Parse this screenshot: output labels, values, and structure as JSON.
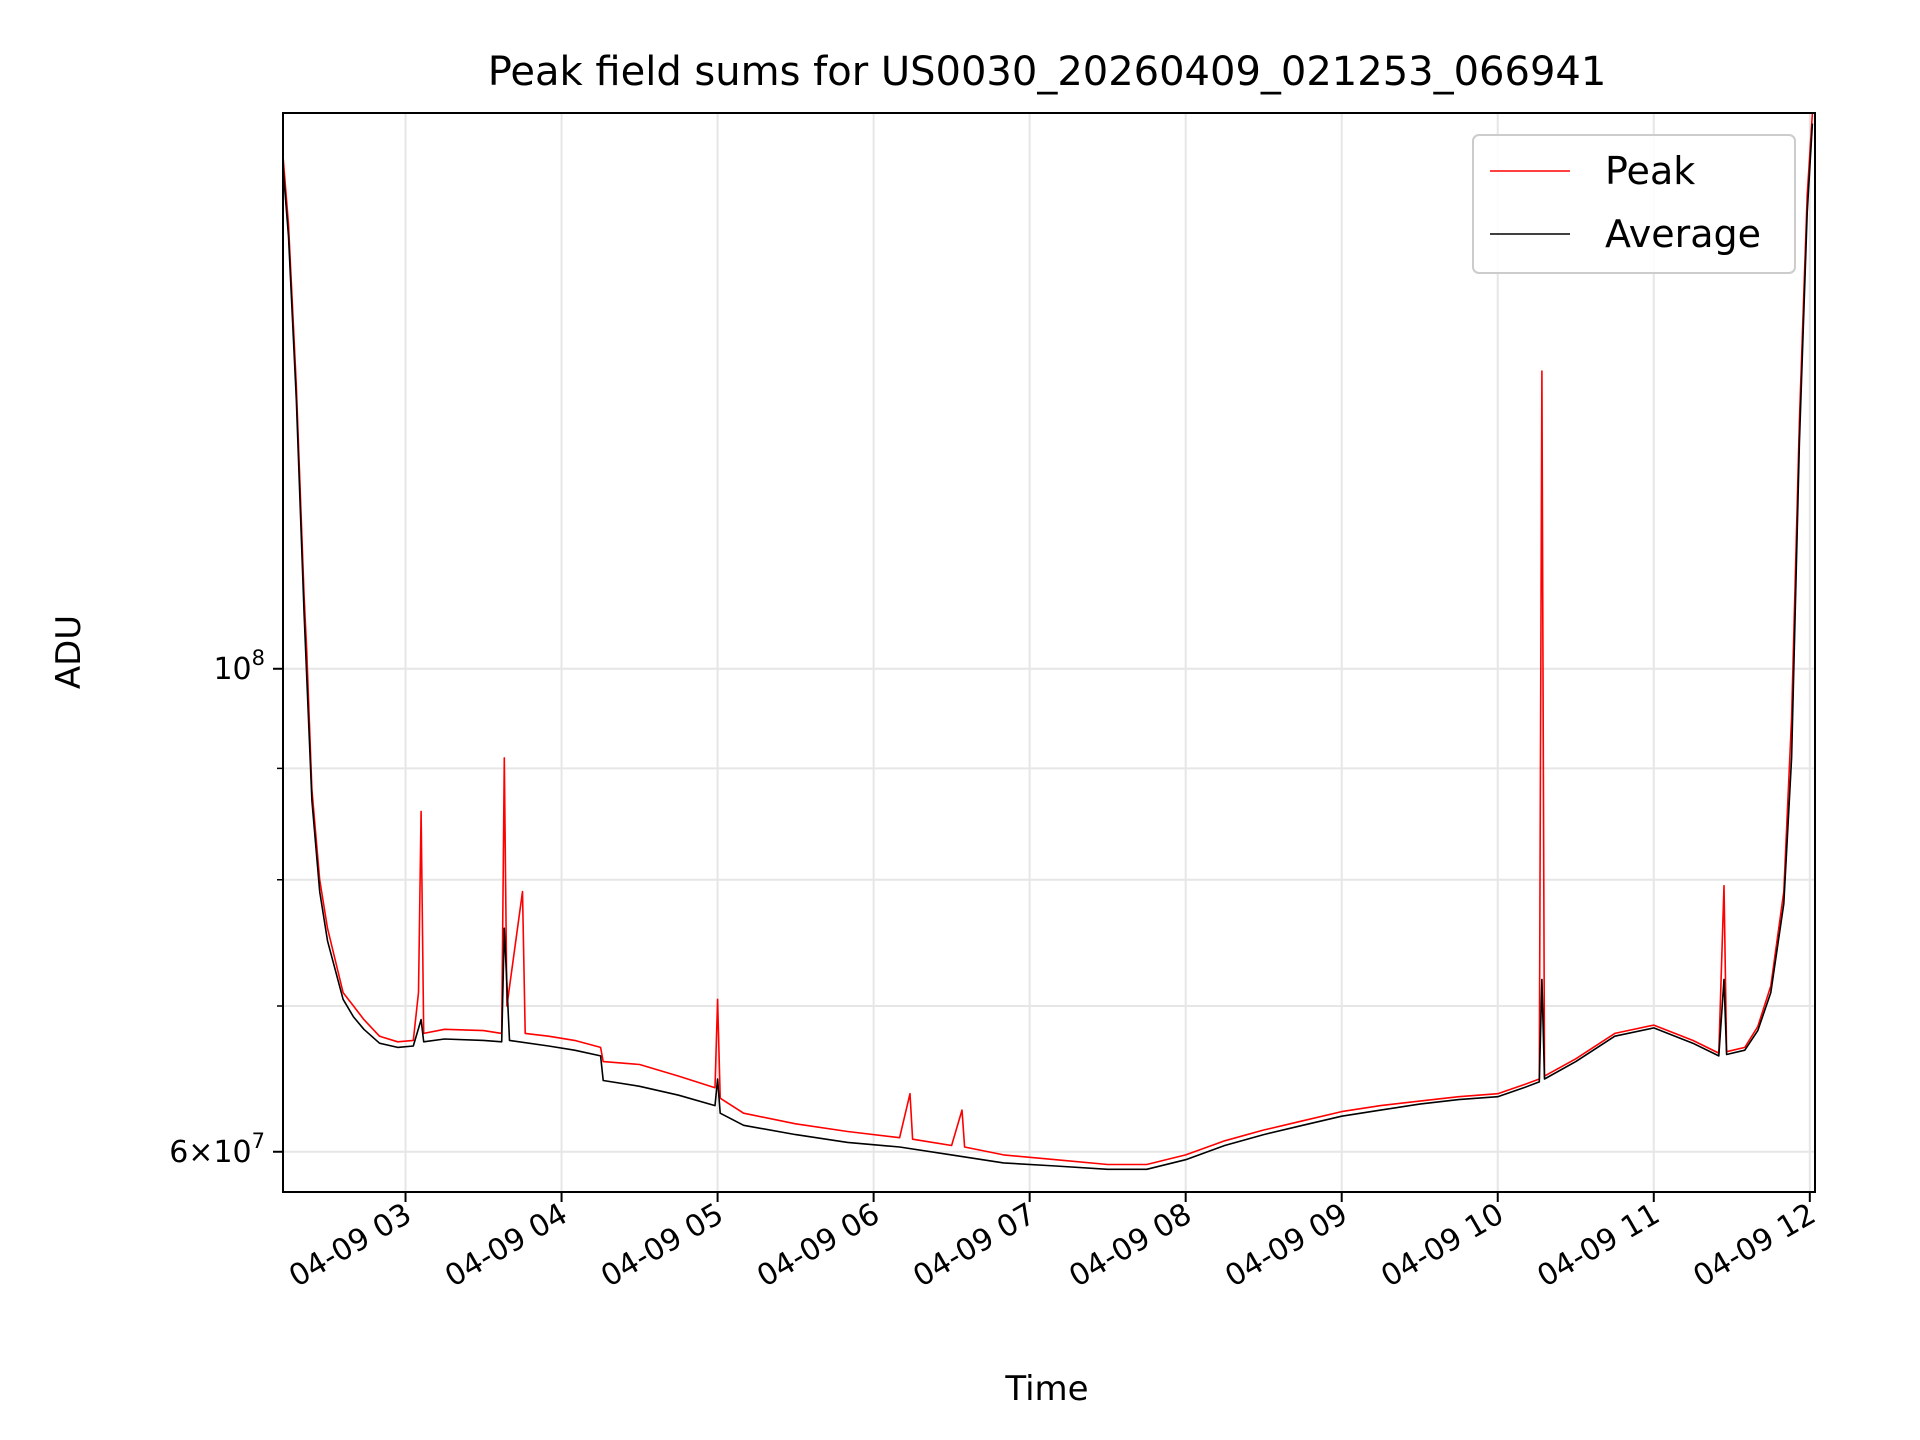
{
  "chart_data": {
    "type": "line",
    "title": "Peak field sums for US0030_20260409_021253_066941",
    "xlabel": "Time",
    "ylabel": "ADU",
    "yscale": "log",
    "xlim": [
      "04-09 02:12:53",
      "04-09 12:02"
    ],
    "ylim": [
      57500000,
      180000000
    ],
    "x_ticks": [
      "04-09 03",
      "04-09 04",
      "04-09 05",
      "04-09 06",
      "04-09 07",
      "04-09 08",
      "04-09 09",
      "04-09 10",
      "04-09 11",
      "04-09 12"
    ],
    "y_ticks": [
      {
        "value": 100000000,
        "base": "10",
        "exp": "8",
        "prefix": ""
      },
      {
        "value": 60000000,
        "base": "10",
        "exp": "7",
        "prefix": "6×"
      }
    ],
    "grid": true,
    "legend": {
      "position": "top-right",
      "entries": [
        "Peak",
        "Average"
      ]
    },
    "colors": {
      "Peak": "#ff0000",
      "Average": "#000000"
    },
    "series": [
      {
        "name": "Peak",
        "points": [
          [
            "02:12:53",
            172000000
          ],
          [
            "02:15",
            160000000
          ],
          [
            "02:18",
            135000000
          ],
          [
            "02:21",
            108000000
          ],
          [
            "02:22",
            102000000
          ],
          [
            "02:24",
            88000000
          ],
          [
            "02:27",
            80000000
          ],
          [
            "02:30",
            76000000
          ],
          [
            "02:36",
            71000000
          ],
          [
            "02:40",
            70000000
          ],
          [
            "02:44",
            69000000
          ],
          [
            "02:50",
            67800000
          ],
          [
            "02:57",
            67400000
          ],
          [
            "03:03",
            67500000
          ],
          [
            "03:05",
            71000000
          ],
          [
            "03:06",
            86000000
          ],
          [
            "03:07",
            68000000
          ],
          [
            "03:15",
            68300000
          ],
          [
            "03:30",
            68200000
          ],
          [
            "03:37",
            68000000
          ],
          [
            "03:38",
            91000000
          ],
          [
            "03:39",
            70000000
          ],
          [
            "03:45",
            79000000
          ],
          [
            "03:46",
            68000000
          ],
          [
            "03:55",
            67800000
          ],
          [
            "04:05",
            67500000
          ],
          [
            "04:15",
            67000000
          ],
          [
            "04:16",
            66000000
          ],
          [
            "04:30",
            65800000
          ],
          [
            "04:45",
            65000000
          ],
          [
            "04:59",
            64200000
          ],
          [
            "05:00",
            70500000
          ],
          [
            "05:01",
            63500000
          ],
          [
            "05:10",
            62500000
          ],
          [
            "05:30",
            61800000
          ],
          [
            "05:50",
            61300000
          ],
          [
            "06:10",
            60900000
          ],
          [
            "06:14",
            63800000
          ],
          [
            "06:15",
            60800000
          ],
          [
            "06:30",
            60400000
          ],
          [
            "06:34",
            62700000
          ],
          [
            "06:35",
            60300000
          ],
          [
            "06:50",
            59800000
          ],
          [
            "07:10",
            59500000
          ],
          [
            "07:30",
            59200000
          ],
          [
            "07:45",
            59200000
          ],
          [
            "08:00",
            59800000
          ],
          [
            "08:15",
            60700000
          ],
          [
            "08:30",
            61400000
          ],
          [
            "08:45",
            62000000
          ],
          [
            "09:00",
            62600000
          ],
          [
            "09:15",
            63000000
          ],
          [
            "09:30",
            63300000
          ],
          [
            "09:45",
            63600000
          ],
          [
            "10:00",
            63800000
          ],
          [
            "10:10",
            64400000
          ],
          [
            "10:16",
            64800000
          ],
          [
            "10:17",
            137000000
          ],
          [
            "10:18",
            65000000
          ],
          [
            "10:30",
            66200000
          ],
          [
            "10:45",
            68000000
          ],
          [
            "11:00",
            68600000
          ],
          [
            "11:15",
            67500000
          ],
          [
            "11:25",
            66600000
          ],
          [
            "11:27",
            79500000
          ],
          [
            "11:28",
            66700000
          ],
          [
            "11:35",
            67000000
          ],
          [
            "11:40",
            68500000
          ],
          [
            "11:45",
            71500000
          ],
          [
            "11:50",
            79000000
          ],
          [
            "11:53",
            95000000
          ],
          [
            "11:56",
            130000000
          ],
          [
            "11:59",
            165000000
          ],
          [
            "12:01",
            180000000
          ]
        ]
      },
      {
        "name": "Average",
        "points": [
          [
            "02:12:53",
            170000000
          ],
          [
            "02:15",
            158000000
          ],
          [
            "02:18",
            133000000
          ],
          [
            "02:21",
            106000000
          ],
          [
            "02:24",
            87000000
          ],
          [
            "02:27",
            79000000
          ],
          [
            "02:30",
            75000000
          ],
          [
            "02:36",
            70500000
          ],
          [
            "02:40",
            69200000
          ],
          [
            "02:44",
            68300000
          ],
          [
            "02:50",
            67300000
          ],
          [
            "02:57",
            67000000
          ],
          [
            "03:03",
            67100000
          ],
          [
            "03:06",
            69000000
          ],
          [
            "03:07",
            67400000
          ],
          [
            "03:15",
            67600000
          ],
          [
            "03:30",
            67500000
          ],
          [
            "03:37",
            67400000
          ],
          [
            "03:38",
            76000000
          ],
          [
            "03:40",
            67500000
          ],
          [
            "03:55",
            67100000
          ],
          [
            "04:05",
            66800000
          ],
          [
            "04:15",
            66400000
          ],
          [
            "04:16",
            64700000
          ],
          [
            "04:30",
            64300000
          ],
          [
            "04:45",
            63700000
          ],
          [
            "04:59",
            63000000
          ],
          [
            "05:00",
            64800000
          ],
          [
            "05:01",
            62500000
          ],
          [
            "05:10",
            61700000
          ],
          [
            "05:30",
            61100000
          ],
          [
            "05:50",
            60600000
          ],
          [
            "06:10",
            60300000
          ],
          [
            "06:30",
            59800000
          ],
          [
            "06:50",
            59300000
          ],
          [
            "07:10",
            59100000
          ],
          [
            "07:30",
            58900000
          ],
          [
            "07:45",
            58900000
          ],
          [
            "08:00",
            59500000
          ],
          [
            "08:15",
            60400000
          ],
          [
            "08:30",
            61100000
          ],
          [
            "08:45",
            61700000
          ],
          [
            "09:00",
            62300000
          ],
          [
            "09:15",
            62700000
          ],
          [
            "09:30",
            63100000
          ],
          [
            "09:45",
            63400000
          ],
          [
            "10:00",
            63600000
          ],
          [
            "10:10",
            64200000
          ],
          [
            "10:16",
            64600000
          ],
          [
            "10:17",
            72000000
          ],
          [
            "10:18",
            64800000
          ],
          [
            "10:30",
            66000000
          ],
          [
            "10:45",
            67800000
          ],
          [
            "11:00",
            68400000
          ],
          [
            "11:15",
            67300000
          ],
          [
            "11:25",
            66400000
          ],
          [
            "11:27",
            72000000
          ],
          [
            "11:28",
            66500000
          ],
          [
            "11:35",
            66800000
          ],
          [
            "11:40",
            68200000
          ],
          [
            "11:45",
            71000000
          ],
          [
            "11:50",
            78000000
          ],
          [
            "11:53",
            91000000
          ],
          [
            "11:56",
            127000000
          ],
          [
            "11:59",
            162000000
          ],
          [
            "12:01",
            178000000
          ]
        ]
      }
    ]
  }
}
